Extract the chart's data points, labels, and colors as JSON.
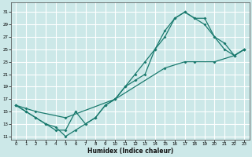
{
  "xlabel": "Humidex (Indice chaleur)",
  "bg_color": "#cce8e8",
  "grid_color": "#ffffff",
  "line_color": "#1a7a6e",
  "xlim": [
    -0.5,
    23.5
  ],
  "ylim": [
    10.5,
    32.5
  ],
  "xticks": [
    0,
    1,
    2,
    3,
    4,
    5,
    6,
    7,
    8,
    9,
    10,
    11,
    12,
    13,
    14,
    15,
    16,
    17,
    18,
    19,
    20,
    21,
    22,
    23
  ],
  "yticks": [
    11,
    13,
    15,
    17,
    19,
    21,
    23,
    25,
    27,
    29,
    31
  ],
  "line1_x": [
    0,
    1,
    2,
    3,
    4,
    5,
    6,
    7,
    8,
    9,
    10,
    11,
    12,
    13,
    14,
    15,
    16,
    17,
    18,
    19,
    20,
    21,
    22,
    23
  ],
  "line1_y": [
    16,
    15,
    14,
    13,
    12.5,
    11,
    12,
    13,
    14,
    16,
    17,
    19,
    20,
    21,
    25,
    27,
    30,
    31,
    30,
    29,
    27,
    25,
    24,
    25
  ],
  "line2_x": [
    0,
    1,
    2,
    3,
    4,
    5,
    6,
    7,
    8,
    9,
    10,
    11,
    12,
    13,
    14,
    15,
    16,
    17,
    18,
    19,
    20,
    21,
    22,
    23
  ],
  "line2_y": [
    16,
    15,
    14,
    13,
    12,
    12,
    15,
    13,
    14,
    16,
    17,
    19,
    21,
    23,
    25,
    28,
    30,
    31,
    30,
    30,
    27,
    26,
    24,
    25
  ],
  "line3_x": [
    0,
    1,
    2,
    5,
    10,
    15,
    17,
    18,
    20,
    22,
    23
  ],
  "line3_y": [
    16,
    15.5,
    15,
    14,
    17,
    22,
    23,
    23,
    23,
    24,
    25
  ]
}
